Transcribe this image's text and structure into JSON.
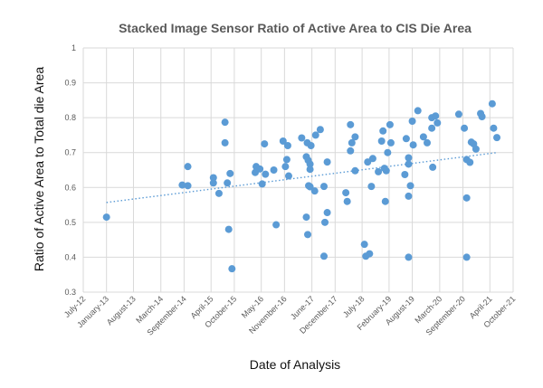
{
  "chart_data": {
    "type": "scatter",
    "title": "Stacked Image Sensor Ratio of Active Area to CIS Die Area",
    "xlabel": "Date of Analysis",
    "ylabel": "Ratio of Active Area to Total die Area",
    "x_unit": "years",
    "xlim": [
      2012.5,
      2021.75
    ],
    "ylim": [
      0.3,
      1
    ],
    "y_ticks": [
      0.3,
      0.4,
      0.5,
      0.6,
      0.7,
      0.8,
      0.9,
      1
    ],
    "y_tick_labels": [
      "0.3",
      "0.4",
      "0.5",
      "0.6",
      "0.7",
      "0.8",
      "0.9",
      "1"
    ],
    "x_ticks": [
      {
        "x": 2012.5,
        "label": "July-12"
      },
      {
        "x": 2013.0,
        "label": "January-13"
      },
      {
        "x": 2013.58,
        "label": "August-13"
      },
      {
        "x": 2014.17,
        "label": "March-14"
      },
      {
        "x": 2014.67,
        "label": "September-14"
      },
      {
        "x": 2015.25,
        "label": "April-15"
      },
      {
        "x": 2015.75,
        "label": "October-15"
      },
      {
        "x": 2016.33,
        "label": "May-16"
      },
      {
        "x": 2016.83,
        "label": "November-16"
      },
      {
        "x": 2017.42,
        "label": "June-17"
      },
      {
        "x": 2017.92,
        "label": "December-17"
      },
      {
        "x": 2018.5,
        "label": "July-18"
      },
      {
        "x": 2019.08,
        "label": "February-19"
      },
      {
        "x": 2019.58,
        "label": "August-19"
      },
      {
        "x": 2020.17,
        "label": "March-20"
      },
      {
        "x": 2020.67,
        "label": "September-20"
      },
      {
        "x": 2021.25,
        "label": "April-21"
      },
      {
        "x": 2021.75,
        "label": "October-21"
      }
    ],
    "grid": true,
    "legend": "none",
    "series": [
      {
        "name": "Ratio",
        "points": [
          [
            2013.0,
            0.515
          ],
          [
            2014.63,
            0.607
          ],
          [
            2014.75,
            0.66
          ],
          [
            2014.75,
            0.605
          ],
          [
            2015.3,
            0.628
          ],
          [
            2015.3,
            0.613
          ],
          [
            2015.42,
            0.583
          ],
          [
            2015.55,
            0.787
          ],
          [
            2015.55,
            0.728
          ],
          [
            2015.6,
            0.613
          ],
          [
            2015.63,
            0.48
          ],
          [
            2015.66,
            0.64
          ],
          [
            2015.7,
            0.367
          ],
          [
            2016.22,
            0.66
          ],
          [
            2016.2,
            0.643
          ],
          [
            2016.3,
            0.653
          ],
          [
            2016.35,
            0.61
          ],
          [
            2016.4,
            0.725
          ],
          [
            2016.42,
            0.638
          ],
          [
            2016.6,
            0.65
          ],
          [
            2016.65,
            0.493
          ],
          [
            2016.8,
            0.733
          ],
          [
            2016.85,
            0.66
          ],
          [
            2016.88,
            0.68
          ],
          [
            2016.9,
            0.72
          ],
          [
            2016.92,
            0.633
          ],
          [
            2017.2,
            0.742
          ],
          [
            2017.32,
            0.728
          ],
          [
            2017.3,
            0.688
          ],
          [
            2017.34,
            0.678
          ],
          [
            2017.35,
            0.605
          ],
          [
            2017.38,
            0.667
          ],
          [
            2017.38,
            0.652
          ],
          [
            2017.3,
            0.515
          ],
          [
            2017.33,
            0.465
          ],
          [
            2017.4,
            0.72
          ],
          [
            2017.38,
            0.602
          ],
          [
            2017.48,
            0.59
          ],
          [
            2017.5,
            0.75
          ],
          [
            2017.6,
            0.766
          ],
          [
            2017.68,
            0.603
          ],
          [
            2017.7,
            0.5
          ],
          [
            2017.68,
            0.403
          ],
          [
            2017.75,
            0.528
          ],
          [
            2017.75,
            0.673
          ],
          [
            2018.15,
            0.585
          ],
          [
            2018.18,
            0.56
          ],
          [
            2018.25,
            0.78
          ],
          [
            2018.25,
            0.705
          ],
          [
            2018.28,
            0.728
          ],
          [
            2018.35,
            0.745
          ],
          [
            2018.35,
            0.648
          ],
          [
            2018.55,
            0.437
          ],
          [
            2018.58,
            0.403
          ],
          [
            2018.62,
            0.673
          ],
          [
            2018.66,
            0.41
          ],
          [
            2018.7,
            0.603
          ],
          [
            2018.73,
            0.683
          ],
          [
            2018.85,
            0.645
          ],
          [
            2018.92,
            0.733
          ],
          [
            2018.95,
            0.762
          ],
          [
            2018.98,
            0.655
          ],
          [
            2019.0,
            0.56
          ],
          [
            2019.02,
            0.648
          ],
          [
            2019.05,
            0.7
          ],
          [
            2019.1,
            0.78
          ],
          [
            2019.12,
            0.728
          ],
          [
            2019.42,
            0.637
          ],
          [
            2019.45,
            0.74
          ],
          [
            2019.5,
            0.685
          ],
          [
            2019.5,
            0.667
          ],
          [
            2019.5,
            0.575
          ],
          [
            2019.5,
            0.4
          ],
          [
            2019.54,
            0.605
          ],
          [
            2019.58,
            0.79
          ],
          [
            2019.6,
            0.722
          ],
          [
            2019.7,
            0.82
          ],
          [
            2019.82,
            0.745
          ],
          [
            2019.9,
            0.728
          ],
          [
            2020.0,
            0.8
          ],
          [
            2020.0,
            0.77
          ],
          [
            2020.02,
            0.658
          ],
          [
            2020.08,
            0.805
          ],
          [
            2020.12,
            0.785
          ],
          [
            2020.58,
            0.81
          ],
          [
            2020.7,
            0.77
          ],
          [
            2020.75,
            0.68
          ],
          [
            2020.75,
            0.57
          ],
          [
            2020.75,
            0.4
          ],
          [
            2020.82,
            0.672
          ],
          [
            2020.85,
            0.73
          ],
          [
            2020.9,
            0.725
          ],
          [
            2020.95,
            0.71
          ],
          [
            2021.05,
            0.812
          ],
          [
            2021.08,
            0.803
          ],
          [
            2021.3,
            0.84
          ],
          [
            2021.33,
            0.77
          ],
          [
            2021.4,
            0.743
          ]
        ]
      }
    ],
    "trendline": {
      "type": "linear",
      "from": [
        2013.0,
        0.557
      ],
      "to": [
        2021.4,
        0.7
      ]
    },
    "colors": {
      "marker": "#5b9bd5",
      "trendline": "#5b9bd5",
      "gridline": "#d9d9d9",
      "title": "#595959"
    }
  }
}
